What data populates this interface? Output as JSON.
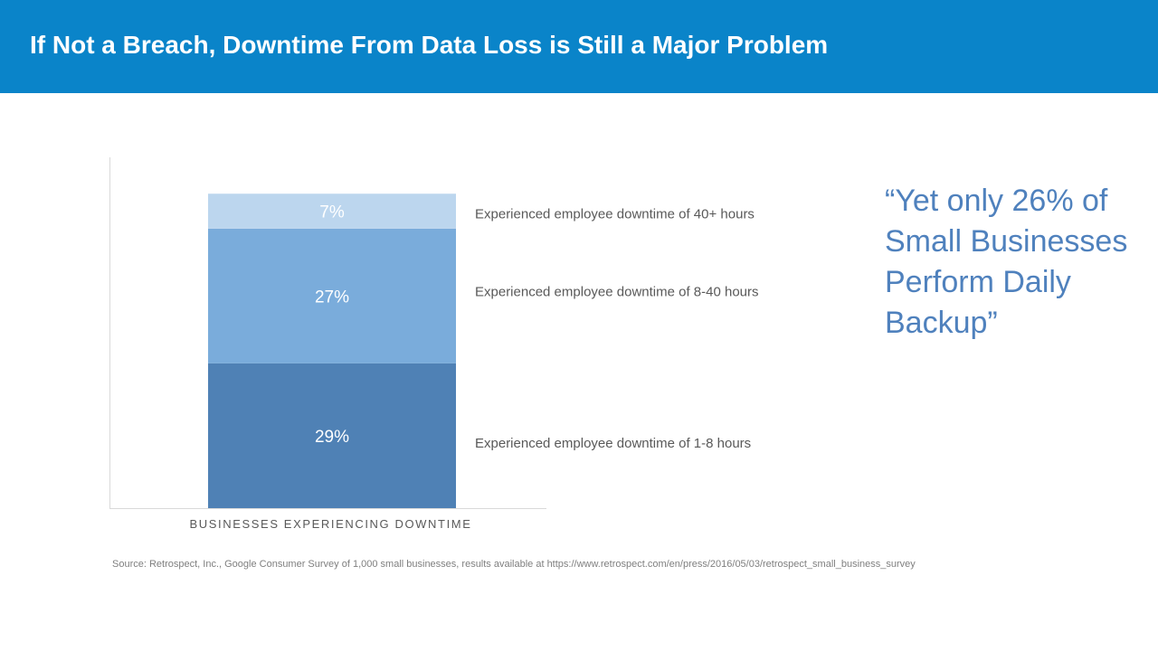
{
  "header": {
    "title": "If Not a Breach, Downtime From Data Loss is Still a Major Problem"
  },
  "chart_data": {
    "type": "bar",
    "stacked": true,
    "categories": [
      "BUSINESSES EXPERIENCING DOWNTIME"
    ],
    "series": [
      {
        "name": "Experienced employee downtime of 1-8 hours",
        "values": [
          29
        ],
        "label": "29%",
        "color": "#4f81b5"
      },
      {
        "name": "Experienced employee downtime of 8-40 hours",
        "values": [
          27
        ],
        "label": "27%",
        "color": "#7aacdb"
      },
      {
        "name": "Experienced employee downtime of 40+ hours",
        "values": [
          7
        ],
        "label": "7%",
        "color": "#bcd6ee"
      }
    ],
    "ylim": [
      0,
      70
    ],
    "grid": false,
    "legend": "right of bars"
  },
  "quote": {
    "text": "“Yet only 26% of Small Businesses Perform Daily Backup”",
    "color": "#4f81bd"
  },
  "source": {
    "text": "Source: Retrospect, Inc., Google Consumer Survey of 1,000 small businesses, results available at https://www.retrospect.com/en/press/2016/05/03/retrospect_small_business_survey"
  },
  "colors": {
    "header_bg": "#0a84c9",
    "axis_label": "#595959",
    "series_label": "#595959"
  }
}
